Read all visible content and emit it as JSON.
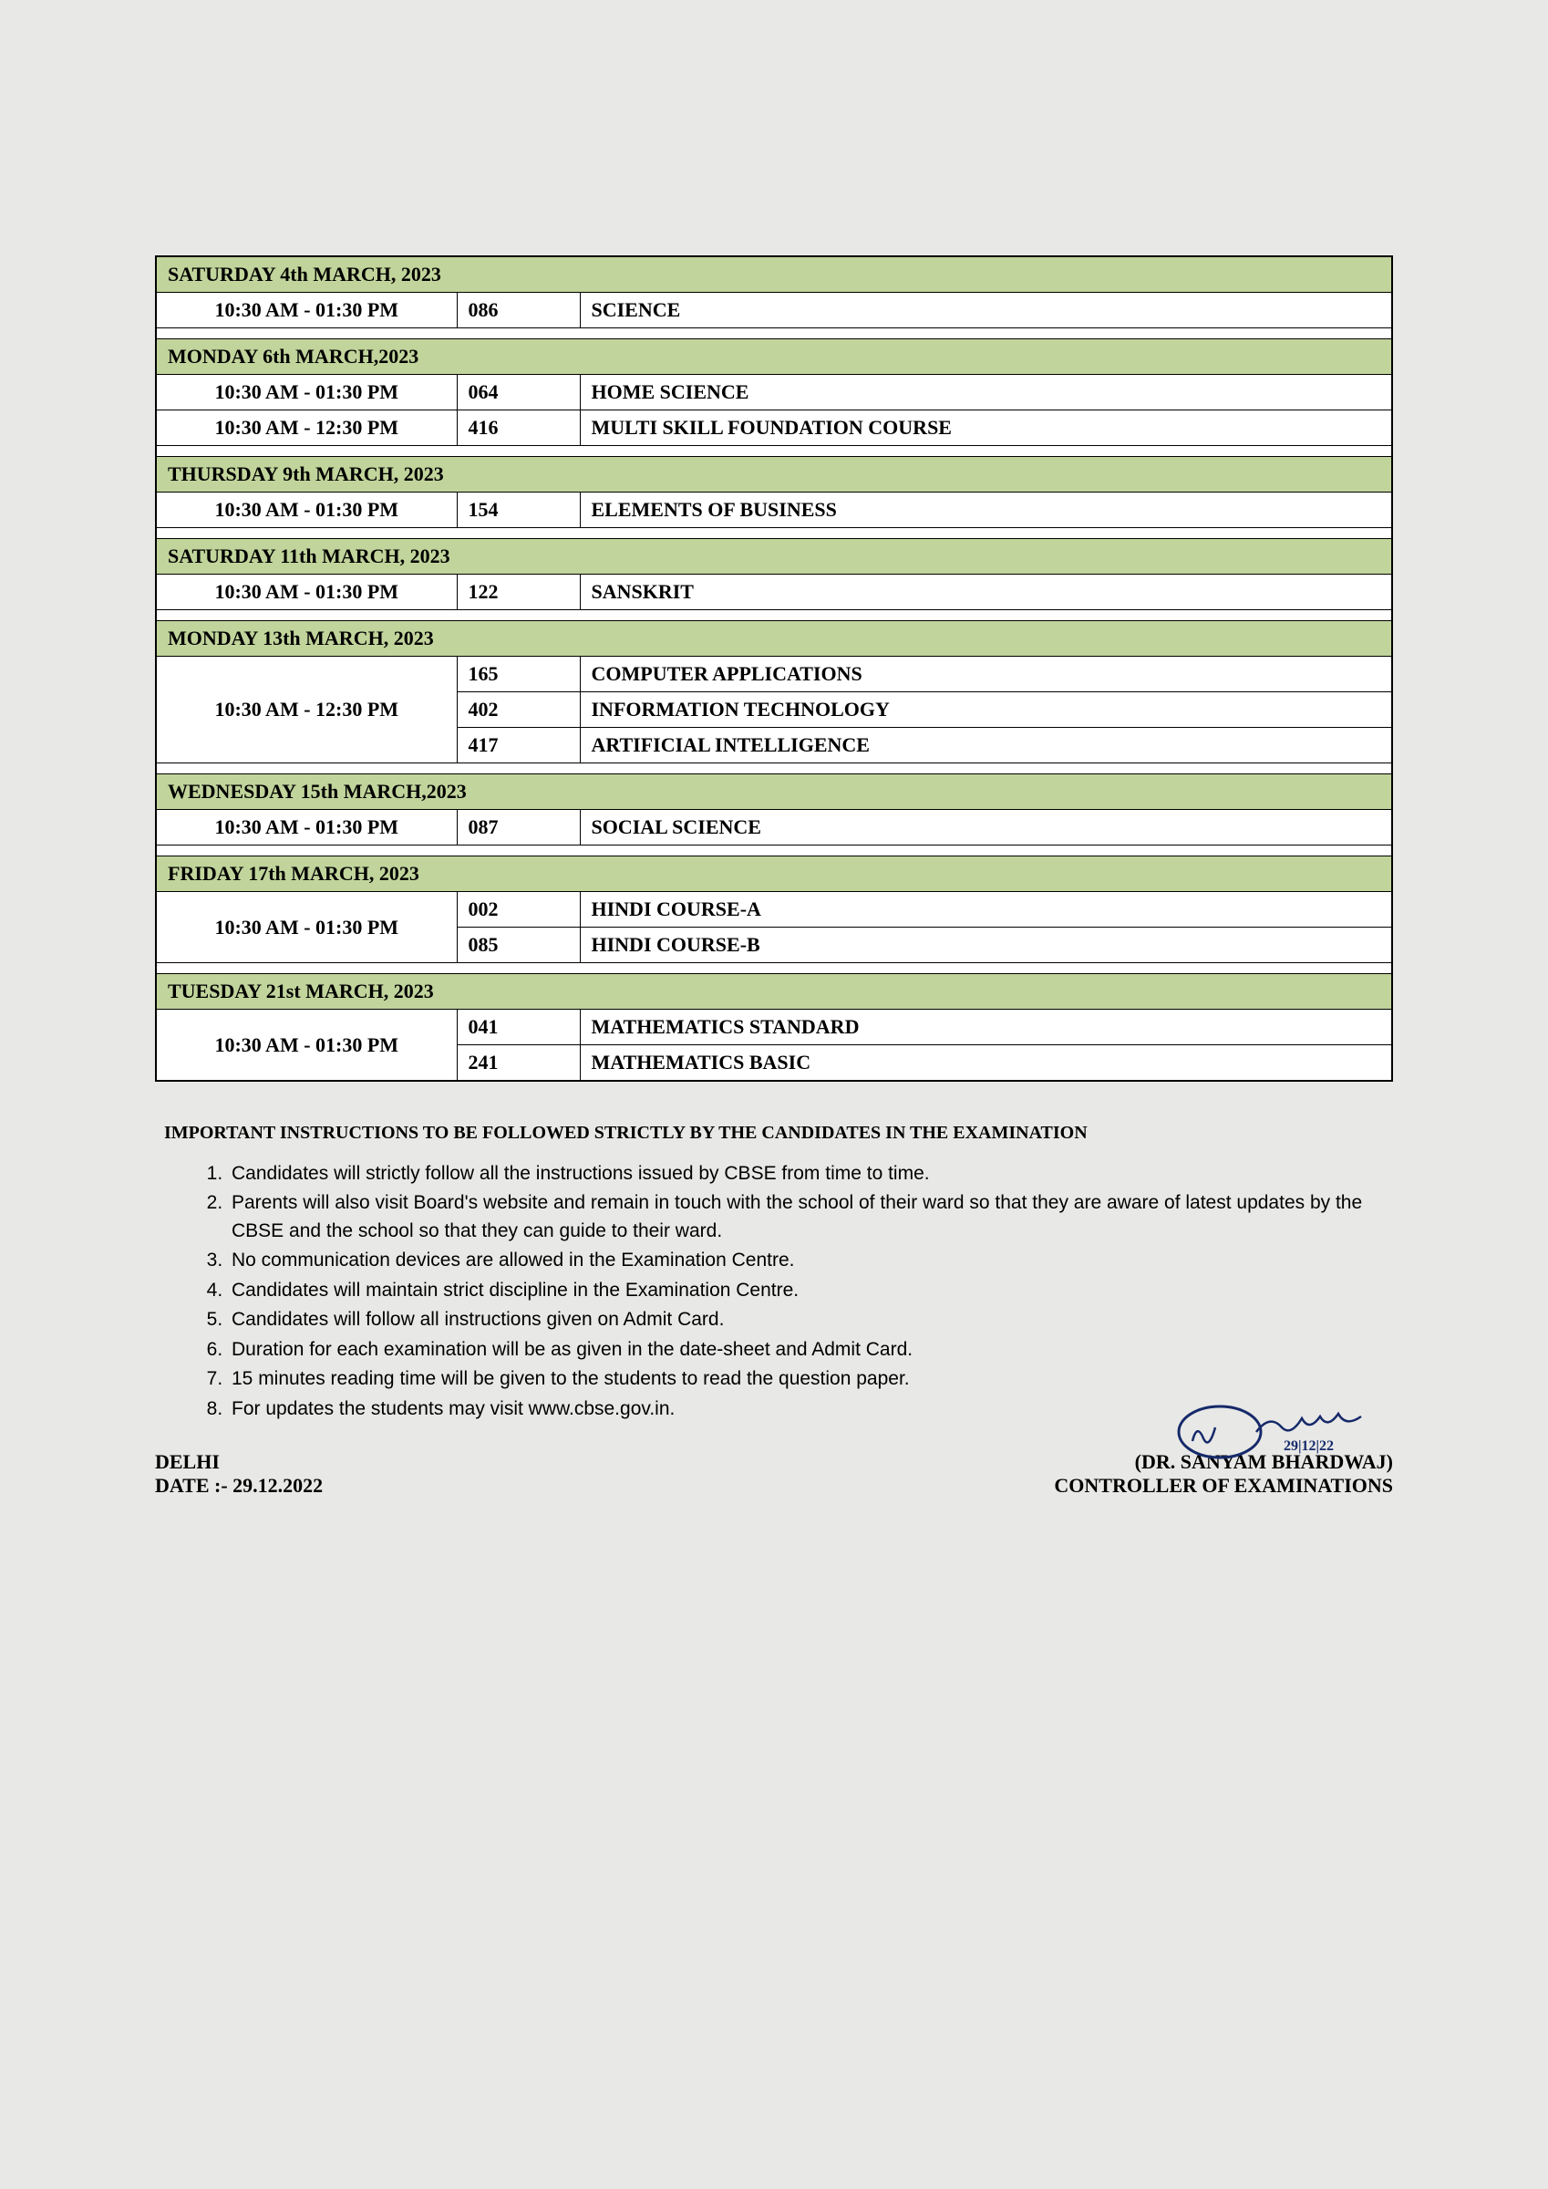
{
  "schedule": [
    {
      "day": "SATURDAY 4th MARCH, 2023",
      "rows": [
        {
          "time": "10:30 AM - 01:30 PM",
          "code": "086",
          "subject": "SCIENCE"
        }
      ]
    },
    {
      "day": "MONDAY 6th MARCH,2023",
      "rows": [
        {
          "time": "10:30 AM - 01:30 PM",
          "code": "064",
          "subject": "HOME SCIENCE"
        },
        {
          "time": "10:30 AM - 12:30 PM",
          "code": "416",
          "subject": "MULTI SKILL FOUNDATION COURSE"
        }
      ]
    },
    {
      "day": "THURSDAY 9th MARCH, 2023",
      "rows": [
        {
          "time": "10:30 AM - 01:30 PM",
          "code": "154",
          "subject": "ELEMENTS OF BUSINESS"
        }
      ]
    },
    {
      "day": "SATURDAY 11th MARCH, 2023",
      "rows": [
        {
          "time": "10:30 AM - 01:30 PM",
          "code": "122",
          "subject": "SANSKRIT"
        }
      ]
    },
    {
      "day": "MONDAY 13th MARCH, 2023",
      "rows": [
        {
          "time": "10:30 AM - 12:30 PM",
          "code": "165",
          "subject": "COMPUTER APPLICATIONS",
          "rowspan": 3
        },
        {
          "code": "402",
          "subject": "INFORMATION TECHNOLOGY"
        },
        {
          "code": "417",
          "subject": "ARTIFICIAL INTELLIGENCE"
        }
      ]
    },
    {
      "day": "WEDNESDAY 15th MARCH,2023",
      "rows": [
        {
          "time": "10:30 AM - 01:30 PM",
          "code": "087",
          "subject": "SOCIAL SCIENCE"
        }
      ]
    },
    {
      "day": "FRIDAY 17th MARCH, 2023",
      "rows": [
        {
          "time": "10:30 AM - 01:30 PM",
          "code": "002",
          "subject": "HINDI COURSE-A",
          "rowspan": 2
        },
        {
          "code": "085",
          "subject": "HINDI COURSE-B"
        }
      ]
    },
    {
      "day": "TUESDAY 21st MARCH, 2023",
      "rows": [
        {
          "time": "10:30 AM - 01:30 PM",
          "code": "041",
          "subject": "MATHEMATICS STANDARD",
          "rowspan": 2
        },
        {
          "code": "241",
          "subject": "MATHEMATICS BASIC"
        }
      ]
    }
  ],
  "instructions_heading": "IMPORTANT INSTRUCTIONS TO BE FOLLOWED STRICTLY BY THE CANDIDATES IN THE EXAMINATION",
  "instructions": [
    "Candidates will strictly follow all the instructions issued by CBSE from time to time.",
    "Parents will also visit Board's website and remain in touch with the school of their ward so that they are aware of latest updates by the CBSE and the school so that they can guide to their ward.",
    "No communication devices are allowed in the Examination Centre.",
    "Candidates will maintain strict discipline in the Examination Centre.",
    "Candidates will follow all instructions given on Admit Card.",
    "Duration for each examination will be as given in the date-sheet and Admit Card.",
    "15 minutes reading time will be given to the students to read the question paper.",
    "For updates the students may visit www.cbse.gov.in."
  ],
  "footer": {
    "place": "DELHI",
    "date_label": "DATE :-  29.12.2022",
    "signatory_name": "(DR. SANYAM BHARDWAJ)",
    "signatory_title": "CONTROLLER OF EXAMINATIONS"
  }
}
